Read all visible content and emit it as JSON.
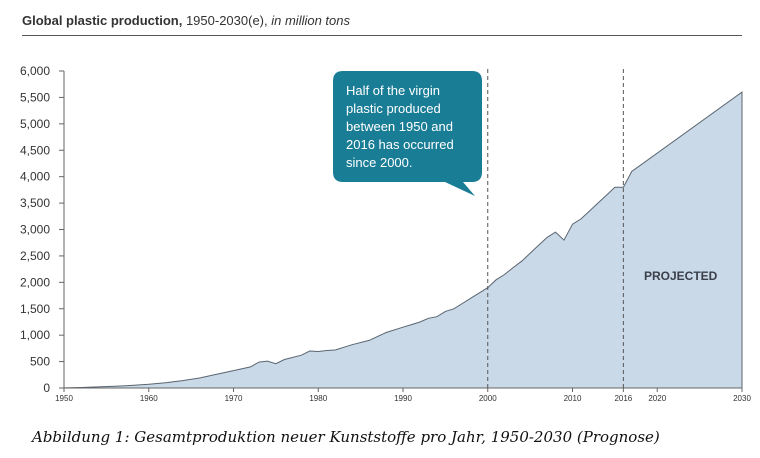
{
  "header": {
    "title_main": "Global plastic production,",
    "title_range": " 1950-2030(e), ",
    "title_unit": "in million tons"
  },
  "caption": "Abbildung 1: Gesamtproduktion neuer Kunststoffe pro Jahr, 1950-2030 (Prognose)",
  "colors": {
    "area_fill": "#c9d9e8",
    "area_stroke": "#5a6570",
    "callout": "#1a7d96",
    "axis": "#666666"
  },
  "chart_data": {
    "type": "area",
    "title": "Global plastic production, 1950-2030(e), in million tons",
    "xlabel": "",
    "ylabel": "",
    "xlim": [
      1950,
      2030
    ],
    "ylim": [
      0,
      6000
    ],
    "grid": false,
    "y_ticks": [
      0,
      500,
      1000,
      1500,
      2000,
      2500,
      3000,
      3500,
      4000,
      4500,
      5000,
      5500,
      6000
    ],
    "y_tick_labels": [
      "0",
      "500",
      "1,000",
      "1,500",
      "2,000",
      "2,500",
      "3,000",
      "3,500",
      "4,000",
      "4,500",
      "5,000",
      "5,500",
      "6,000"
    ],
    "x_ticks": [
      1950,
      1960,
      1970,
      1980,
      1990,
      2000,
      2010,
      2016,
      2020,
      2030
    ],
    "x_tick_labels": [
      "1950",
      "1960",
      "1970",
      "1980",
      "1990",
      "2000",
      "2010",
      "2016",
      "2020",
      "2030"
    ],
    "x": [
      1950,
      1952,
      1954,
      1956,
      1958,
      1960,
      1962,
      1964,
      1966,
      1968,
      1970,
      1972,
      1973,
      1974,
      1975,
      1976,
      1978,
      1979,
      1980,
      1981,
      1982,
      1984,
      1986,
      1988,
      1990,
      1991,
      1992,
      1993,
      1994,
      1995,
      1996,
      1997,
      1998,
      1999,
      2000,
      2001,
      2002,
      2003,
      2004,
      2005,
      2006,
      2007,
      2008,
      2009,
      2010,
      2011,
      2012,
      2013,
      2014,
      2015,
      2016,
      2017,
      2030
    ],
    "y": [
      2,
      10,
      20,
      35,
      50,
      70,
      100,
      140,
      190,
      260,
      330,
      400,
      490,
      510,
      460,
      540,
      620,
      700,
      690,
      710,
      720,
      820,
      900,
      1050,
      1150,
      1200,
      1250,
      1320,
      1350,
      1450,
      1500,
      1600,
      1700,
      1800,
      1900,
      2050,
      2150,
      2280,
      2400,
      2550,
      2700,
      2850,
      2950,
      2800,
      3100,
      3200,
      3350,
      3500,
      3650,
      3800,
      3800,
      4100,
      5600
    ],
    "reference_lines": [
      2000,
      2016
    ],
    "annotations": [
      {
        "text_lines": [
          "Half of the virgin",
          "plastic produced",
          "between 1950 and",
          "2016 has occurred",
          "since 2000."
        ]
      },
      {
        "text": "PROJECTED"
      }
    ]
  }
}
